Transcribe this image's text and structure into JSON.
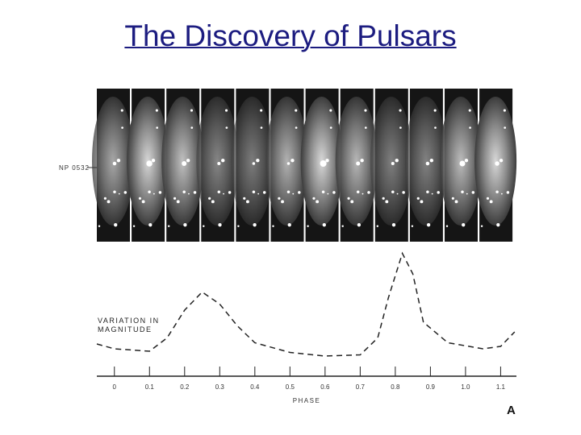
{
  "title": "The Discovery of Pulsars",
  "photo_label": "NP 0532",
  "panel_label": "A",
  "chart_data": {
    "type": "line",
    "y_label": "VARIATION IN MAGNITUDE",
    "x_label": "PHASE",
    "x": [
      -0.05,
      0.0,
      0.1,
      0.15,
      0.2,
      0.25,
      0.3,
      0.35,
      0.4,
      0.5,
      0.6,
      0.7,
      0.75,
      0.78,
      0.82,
      0.85,
      0.88,
      0.95,
      1.05,
      1.1,
      1.14
    ],
    "values": [
      0.22,
      0.18,
      0.16,
      0.27,
      0.5,
      0.65,
      0.55,
      0.37,
      0.23,
      0.15,
      0.12,
      0.13,
      0.27,
      0.6,
      0.97,
      0.8,
      0.4,
      0.23,
      0.18,
      0.2,
      0.32
    ],
    "color": "#222222",
    "xlim": [
      -0.05,
      1.145
    ],
    "ylim": [
      0,
      1
    ],
    "xticks": [
      0,
      0.1,
      0.2,
      0.3,
      0.4,
      0.5,
      0.6,
      0.7,
      0.8,
      0.9,
      {
        "value": 1,
        "label": "1.0"
      },
      1.1
    ]
  }
}
